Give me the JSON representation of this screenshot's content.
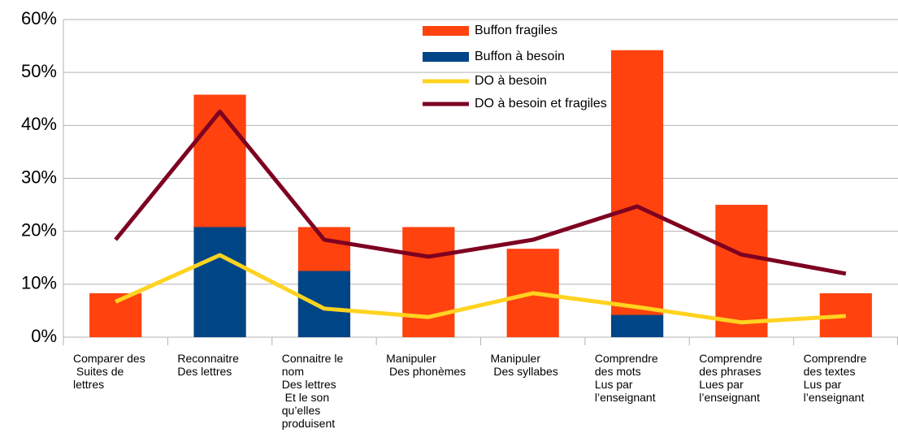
{
  "chart_data": {
    "type": "bar",
    "categories": [
      "Comparer des\n Suites de\nlettres",
      "Reconnaitre\nDes lettres",
      "Connaitre le\nnom\nDes lettres\n Et le son\nqu’elles\nproduisent",
      "Manipuler\n Des phonèmes",
      "Manipuler\n Des syllabes",
      "Comprendre\ndes mots\nLus par\nl’enseignant",
      "Comprendre\ndes phrases\nLues par\nl’enseignant",
      "Comprendre\ndes textes\nLus par\nl’enseignant"
    ],
    "series": [
      {
        "name": "Buffon fragiles",
        "type": "bar",
        "color": "#ff420e",
        "values": [
          8.3,
          45.8,
          20.8,
          20.8,
          16.7,
          54.2,
          25,
          8.3
        ]
      },
      {
        "name": "Buffon à besoin",
        "type": "bar",
        "color": "#004586",
        "values": [
          0,
          20.8,
          12.5,
          0,
          0,
          4.2,
          0,
          0
        ]
      },
      {
        "name": "DO à besoin",
        "type": "line",
        "color": "#ffd320",
        "values": [
          6.7,
          15.5,
          5.4,
          3.8,
          8.3,
          5.7,
          2.8,
          4.0
        ]
      },
      {
        "name": "DO à besoin et fragiles",
        "type": "line",
        "color": "#7e0021",
        "values": [
          18.4,
          42.6,
          18.4,
          15.2,
          18.4,
          24.7,
          15.6,
          12.0
        ]
      }
    ],
    "bar_mode": "overlap",
    "ylim": [
      0,
      60
    ],
    "yticks": [
      {
        "value": 0,
        "label": "0%"
      },
      {
        "value": 10,
        "label": "10%"
      },
      {
        "value": 20,
        "label": "20%"
      },
      {
        "value": 30,
        "label": "30%"
      },
      {
        "value": 40,
        "label": "40%"
      },
      {
        "value": 50,
        "label": "50%"
      },
      {
        "value": 60,
        "label": "60%"
      }
    ],
    "grid": true,
    "legend": "top"
  }
}
